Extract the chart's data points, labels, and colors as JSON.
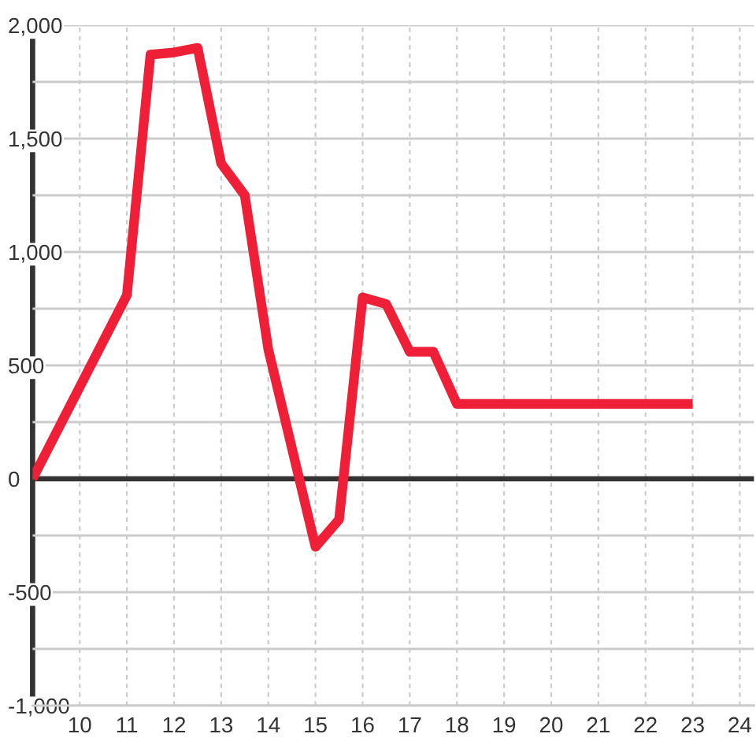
{
  "chart_data": {
    "type": "line",
    "x": [
      9,
      11,
      11.5,
      12,
      12.5,
      13,
      13.5,
      14,
      15,
      15.5,
      16,
      16.5,
      17,
      17.5,
      18,
      23
    ],
    "values": [
      0,
      810,
      1870,
      1880,
      1900,
      1390,
      1250,
      570,
      -300,
      -180,
      800,
      770,
      560,
      560,
      330,
      330
    ],
    "color": "#ee1f36",
    "xlim": [
      9,
      24.3
    ],
    "xticks": [
      10,
      11,
      12,
      13,
      14,
      15,
      16,
      17,
      18,
      19,
      20,
      21,
      22,
      23,
      24
    ],
    "ylim": [
      -1000,
      2000
    ],
    "yticks": [
      {
        "value": -1000,
        "label": "-1,000"
      },
      {
        "value": -750,
        "label": null
      },
      -500,
      {
        "value": -250,
        "label": null
      },
      0,
      {
        "value": 250,
        "label": null
      },
      500,
      {
        "value": 750,
        "label": null
      },
      {
        "value": 1000,
        "label": "1,000"
      },
      {
        "value": 1250,
        "label": null
      },
      {
        "value": 1500,
        "label": "1,500"
      },
      {
        "value": 1750,
        "label": null
      },
      {
        "value": 2000,
        "label": "2,000"
      }
    ],
    "grid": true,
    "ref_lines": [
      {
        "axis": "y",
        "value": 0,
        "color": "#333333"
      }
    ]
  }
}
